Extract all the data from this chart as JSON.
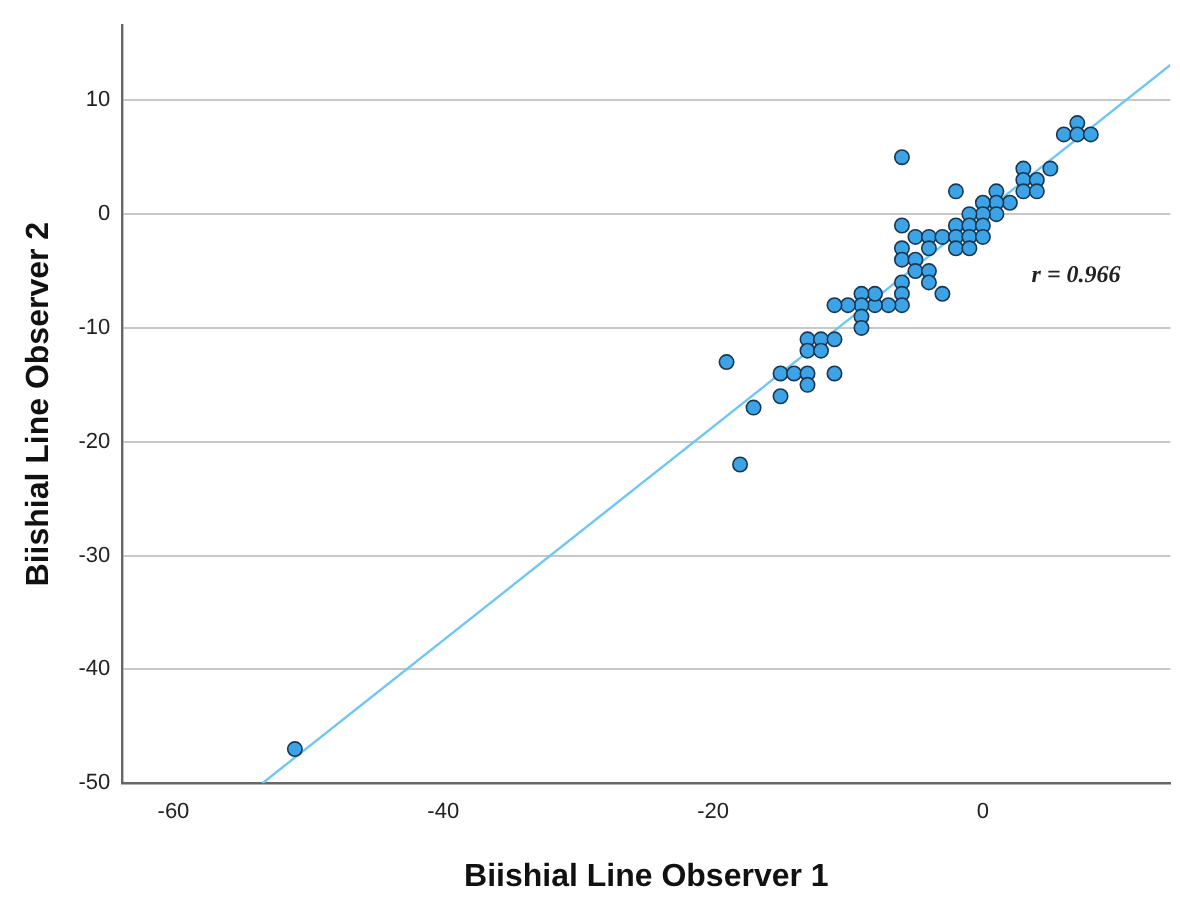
{
  "chart_data": {
    "type": "scatter",
    "xlabel": "Biishial Line Observer 1",
    "ylabel": "Biishial Line Observer 2",
    "xlim": [
      -63.8,
      13.9
    ],
    "ylim": [
      -50,
      16.6
    ],
    "xticks": [
      -60,
      -40,
      -20,
      0
    ],
    "yticks": [
      -50,
      -40,
      -30,
      -20,
      -10,
      0,
      10
    ],
    "grid": "y",
    "legend": false,
    "marker": "circle",
    "annotations": [
      "r = 0.966"
    ],
    "series": [
      {
        "color": "#3ba3e6",
        "x": [
          -6,
          7,
          6,
          7,
          8,
          5,
          3,
          3,
          4,
          3,
          4,
          -2,
          1,
          2,
          1,
          0,
          1,
          0,
          -1,
          -2,
          -1,
          0,
          -6,
          -5,
          -4,
          -3,
          -2,
          -1,
          0,
          -2,
          -1,
          -4,
          -6,
          -6,
          -5,
          -5,
          -4,
          -4,
          -3,
          -6,
          -6,
          -6,
          -7,
          -8,
          -8,
          -9,
          -9,
          -10,
          -11,
          -9,
          -9,
          -13,
          -12,
          -11,
          -13,
          -12,
          -19,
          -15,
          -14,
          -13,
          -11,
          -13,
          -15,
          -17,
          -18,
          -51
        ],
        "values": [
          5,
          8,
          7,
          7,
          7,
          4,
          4,
          3,
          3,
          2,
          2,
          2,
          2,
          1,
          1,
          1,
          0,
          0,
          0,
          -1,
          -1,
          -1,
          -1,
          -2,
          -2,
          -2,
          -2,
          -2,
          -2,
          -3,
          -3,
          -3,
          -3,
          -4,
          -4,
          -5,
          -5,
          -6,
          -7,
          -6,
          -7,
          -8,
          -8,
          -8,
          -7,
          -7,
          -8,
          -8,
          -8,
          -9,
          -10,
          -11,
          -11,
          -11,
          -12,
          -12,
          -13,
          -14,
          -14,
          -14,
          -14,
          -15,
          -16,
          -17,
          -22,
          -47
        ]
      },
      {
        "type": "line",
        "color": "#6ec6f5",
        "marker": "none",
        "x": [
          -53.4,
          13.9
        ],
        "values": [
          -50,
          13.1
        ]
      }
    ]
  }
}
